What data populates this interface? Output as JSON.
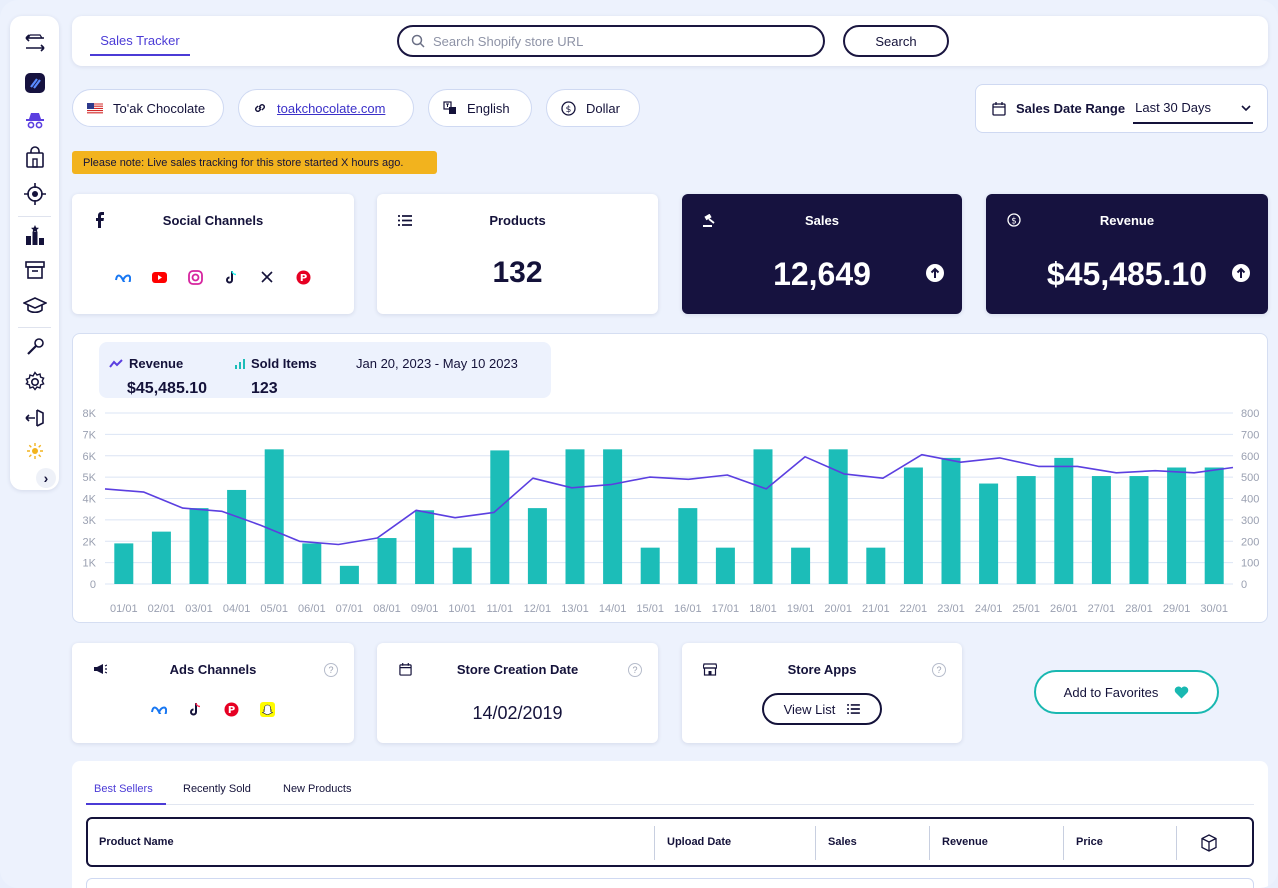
{
  "sidebar": {
    "items": [
      "store-swap-icon",
      "app-logo-icon",
      "spy-icon",
      "shopping-bag-icon",
      "target-icon",
      "ranking-icon",
      "archive-icon",
      "graduation-cap-icon",
      "tools-icon",
      "settings-icon",
      "logout-icon",
      "sun-icon"
    ],
    "expand_label": "›"
  },
  "topbar": {
    "tab_label": "Sales Tracker",
    "search_placeholder": "Search Shopify store URL",
    "search_button": "Search"
  },
  "store": {
    "name": "To'ak Chocolate",
    "url": "toakchocolate.com",
    "language": "English",
    "currency": "Dollar"
  },
  "date_range": {
    "label": "Sales Date Range",
    "value": "Last 30 Days"
  },
  "notice": "Please note: Live sales tracking for this store started X hours ago.",
  "cards": {
    "social": {
      "title": "Social Channels",
      "icons": [
        "meta-icon",
        "youtube-icon",
        "instagram-icon",
        "tiktok-icon",
        "x-icon",
        "pinterest-icon"
      ]
    },
    "products": {
      "title": "Products",
      "value": "132"
    },
    "sales": {
      "title": "Sales",
      "value": "12,649"
    },
    "revenue": {
      "title": "Revenue",
      "value": "$45,485.10"
    }
  },
  "chart_legend": {
    "revenue_label": "Revenue",
    "revenue_value": "$45,485.10",
    "sold_label": "Sold Items",
    "sold_value": "123",
    "range": "Jan 20, 2023 - May 10 2023"
  },
  "chart_data": {
    "type": "bar",
    "categories": [
      "01/01",
      "02/01",
      "03/01",
      "04/01",
      "05/01",
      "06/01",
      "07/01",
      "08/01",
      "09/01",
      "10/01",
      "11/01",
      "12/01",
      "13/01",
      "14/01",
      "15/01",
      "16/01",
      "17/01",
      "18/01",
      "19/01",
      "20/01",
      "21/01",
      "22/01",
      "23/01",
      "24/01",
      "25/01",
      "26/01",
      "27/01",
      "28/01",
      "29/01",
      "30/01"
    ],
    "bars": [
      1900,
      2450,
      3550,
      4400,
      6300,
      1900,
      850,
      2150,
      3450,
      1700,
      6250,
      3550,
      6300,
      6300,
      1700,
      3550,
      1700,
      6300,
      1700,
      6300,
      1700,
      5450,
      5900,
      4700,
      5050,
      5900,
      5050,
      5050,
      5450,
      5450
    ],
    "line": [
      445,
      430,
      355,
      340,
      275,
      200,
      185,
      215,
      345,
      310,
      335,
      495,
      450,
      465,
      500,
      490,
      510,
      445,
      595,
      515,
      495,
      605,
      570,
      590,
      550,
      550,
      520,
      530,
      520,
      545
    ],
    "left_axis": {
      "ticks": [
        "0",
        "1K",
        "2K",
        "3K",
        "4K",
        "5K",
        "6K",
        "7K",
        "8K"
      ],
      "range": [
        0,
        8000
      ]
    },
    "right_axis": {
      "ticks": [
        "0",
        "100",
        "200",
        "300",
        "400",
        "500",
        "600",
        "700",
        "800"
      ],
      "range": [
        0,
        800
      ]
    },
    "bar_color": "#1cbdb8",
    "line_color": "#5b3fe0",
    "grid": true
  },
  "bottom_cards": {
    "ads": {
      "title": "Ads Channels",
      "icons": [
        "meta-icon",
        "tiktok-icon",
        "pinterest-icon",
        "snapchat-icon"
      ]
    },
    "creation": {
      "title": "Store Creation Date",
      "value": "14/02/2019"
    },
    "apps": {
      "title": "Store Apps",
      "button": "View List"
    },
    "favorites_button": "Add to Favorites",
    "help_glyph": "?"
  },
  "table": {
    "tabs": [
      "Best Sellers",
      "Recently Sold",
      "New Products"
    ],
    "columns": [
      "Product Name",
      "Upload Date",
      "Sales",
      "Revenue",
      "Price"
    ]
  },
  "colors": {
    "accent": "#4b3bd6",
    "dark_card": "#16123f",
    "teal": "#1cbdb8",
    "notice": "#f2b31e"
  }
}
